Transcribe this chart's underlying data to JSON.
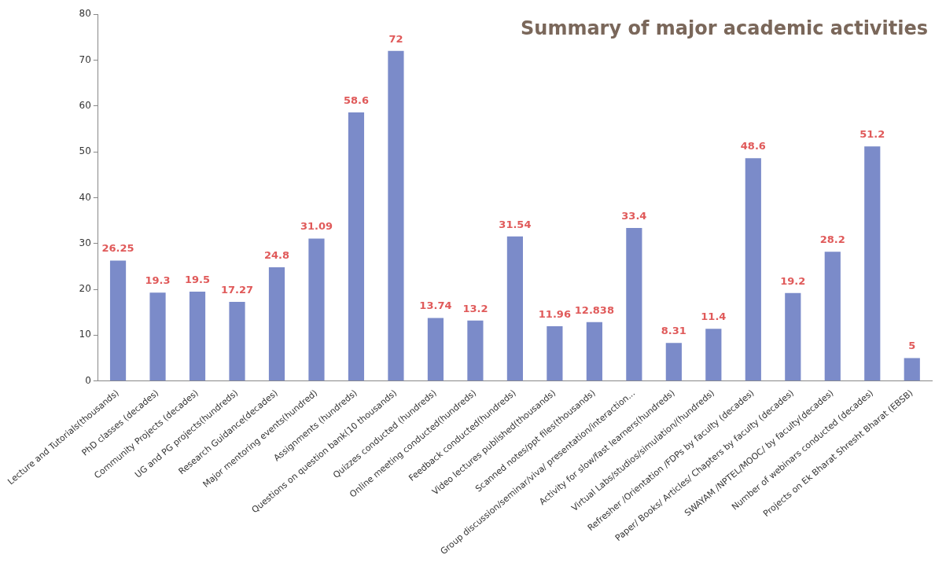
{
  "chart_data": {
    "type": "bar",
    "title": "Summary of major academic activities",
    "categories": [
      "Lecture and Tutorials(thousands)",
      "PhD classes (decades)",
      "Community Projects (decades)",
      "UG and PG projects(hundreds)",
      "Research Guidance(decades)",
      "Major mentoring events(hundred)",
      "Assignments (hundreds)",
      "Questions on question bank(10 thousands)",
      "Quizzes conducted (hundreds)",
      "Online meeting conducted(hundreds)",
      "Feedback conducted(hundreds)",
      "Video lectures published(thousands)",
      "Scanned notes/ppt files(thousands)",
      "Group discussion/seminar/viva/ presentation/interaction...",
      "Activity for slow/fast learners(hundreds)",
      "Virtual Labs/studios/simulation/(hundreds)",
      "Refresher /Orientation /FDPs by faculty (decades)",
      "Paper/ Books/ Articles/ Chapters by faculty (decades)",
      "SWAYAM /NPTEL/MOOC/ by faculty(decades)",
      "Number of webinars conducted (decades)",
      "Projects on Ek Bharat Shresht Bharat (EBSB)"
    ],
    "values": [
      26.25,
      19.3,
      19.5,
      17.27,
      24.8,
      31.09,
      58.6,
      72,
      13.74,
      13.2,
      31.54,
      11.96,
      12.838,
      33.4,
      8.31,
      11.4,
      48.6,
      19.2,
      28.2,
      51.2,
      5
    ],
    "color": "#7b8bc9",
    "data_labels": true,
    "ylim": [
      0,
      80
    ],
    "yticks": [
      0,
      10,
      20,
      30,
      40,
      50,
      60,
      70,
      80
    ],
    "grid": false,
    "legend": false
  }
}
